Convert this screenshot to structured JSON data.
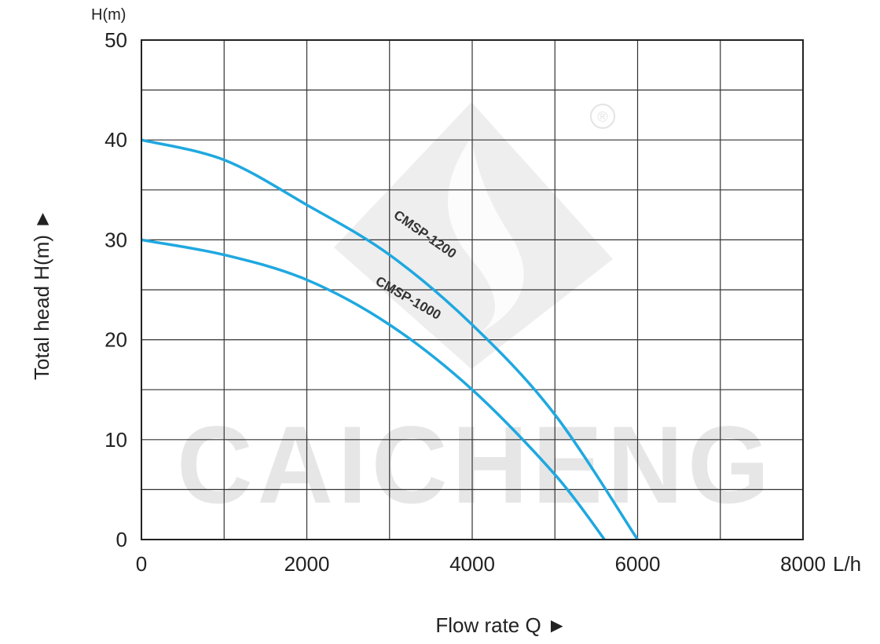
{
  "chart_data": {
    "type": "line",
    "xlabel": "Flow rate  Q ►",
    "ylabel": "Total  head H(m) ►",
    "y_unit": "H(m)",
    "x_unit": "L/h",
    "xlim": [
      0,
      8000
    ],
    "ylim": [
      0,
      50
    ],
    "x_ticks": [
      0,
      2000,
      4000,
      6000,
      8000
    ],
    "y_ticks": [
      0,
      10,
      20,
      30,
      40,
      50
    ],
    "x_tick_labels": [
      "0",
      "2000",
      "4000",
      "6000",
      "8000"
    ],
    "y_tick_labels": [
      "0",
      "10",
      "20",
      "30",
      "40",
      "50"
    ],
    "x_minor_step": 1000,
    "y_minor_step": 5,
    "grid": true,
    "series": [
      {
        "name": "CMSP-1200",
        "color": "#1fa8e0",
        "x": [
          0,
          1000,
          2000,
          3000,
          4000,
          5000,
          6000
        ],
        "y": [
          40,
          38,
          33.5,
          28.5,
          21.5,
          12.5,
          0
        ]
      },
      {
        "name": "CMSP-1000",
        "color": "#1fa8e0",
        "x": [
          0,
          1000,
          2000,
          3000,
          4000,
          5000,
          5600
        ],
        "y": [
          30,
          28.5,
          26,
          21.5,
          15,
          6.5,
          0
        ]
      }
    ],
    "watermark": {
      "text": "CAICHENG",
      "symbol": "®"
    }
  }
}
